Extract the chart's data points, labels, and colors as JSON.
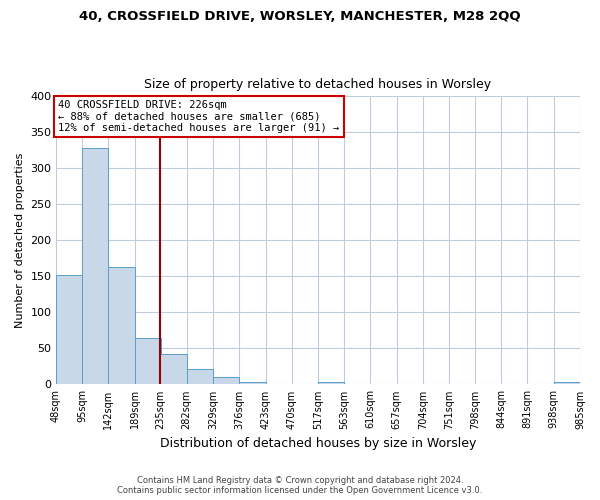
{
  "title": "40, CROSSFIELD DRIVE, WORSLEY, MANCHESTER, M28 2QQ",
  "subtitle": "Size of property relative to detached houses in Worsley",
  "xlabel": "Distribution of detached houses by size in Worsley",
  "ylabel": "Number of detached properties",
  "bar_color": "#c8d8e8",
  "bar_edge_color": "#5a9ec8",
  "background_color": "#ffffff",
  "grid_color": "#c0ccdd",
  "bin_edges": [
    48,
    95,
    142,
    189,
    235,
    282,
    329,
    376,
    423,
    470,
    517,
    563,
    610,
    657,
    704,
    751,
    798,
    844,
    891,
    938,
    985
  ],
  "bin_labels": [
    "48sqm",
    "95sqm",
    "142sqm",
    "189sqm",
    "235sqm",
    "282sqm",
    "329sqm",
    "376sqm",
    "423sqm",
    "470sqm",
    "517sqm",
    "563sqm",
    "610sqm",
    "657sqm",
    "704sqm",
    "751sqm",
    "798sqm",
    "844sqm",
    "891sqm",
    "938sqm",
    "985sqm"
  ],
  "bar_heights": [
    152,
    328,
    163,
    65,
    42,
    22,
    10,
    4,
    0,
    0,
    4,
    0,
    0,
    0,
    0,
    0,
    0,
    0,
    0,
    4
  ],
  "vline_x": 235,
  "vline_color": "#990000",
  "annotation_line1": "40 CROSSFIELD DRIVE: 226sqm",
  "annotation_line2": "← 88% of detached houses are smaller (685)",
  "annotation_line3": "12% of semi-detached houses are larger (91) →",
  "annotation_box_color": "#ffffff",
  "annotation_box_edge": "#cc0000",
  "footer_line1": "Contains HM Land Registry data © Crown copyright and database right 2024.",
  "footer_line2": "Contains public sector information licensed under the Open Government Licence v3.0.",
  "ylim": [
    0,
    400
  ],
  "yticks": [
    0,
    50,
    100,
    150,
    200,
    250,
    300,
    350,
    400
  ]
}
